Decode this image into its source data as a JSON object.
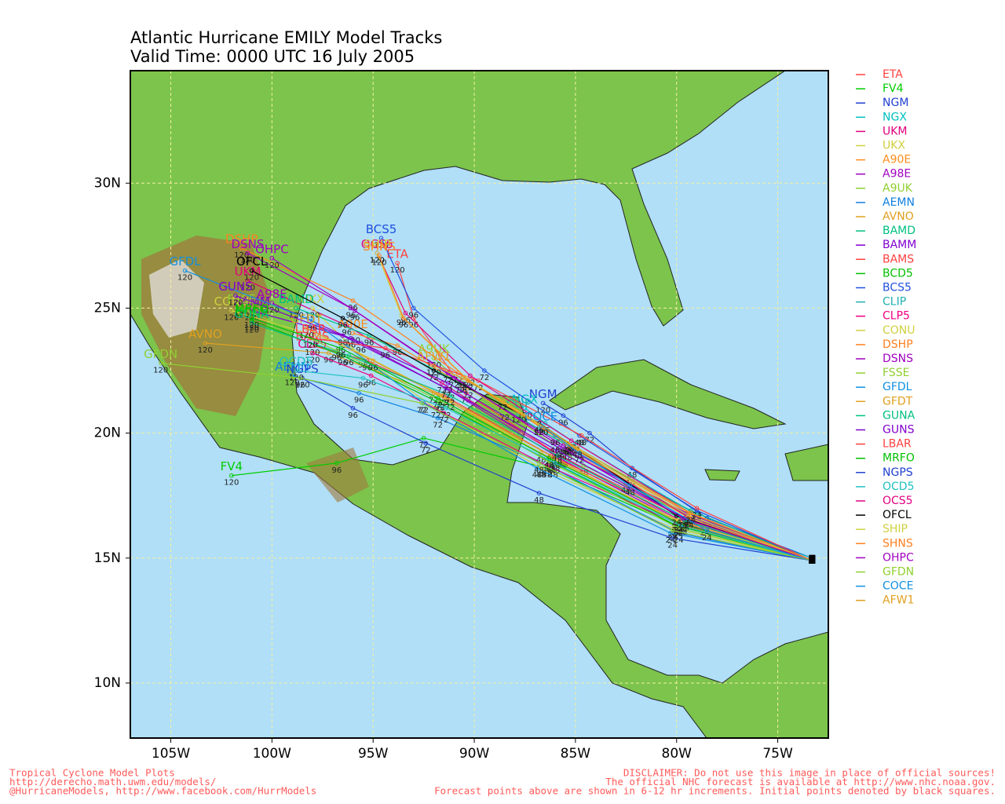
{
  "header": {
    "title": "Atlantic Hurricane EMILY Model Tracks",
    "subtitle": "Valid Time: 0000 UTC 16 July 2005"
  },
  "map": {
    "xlim": [
      -107,
      -72.5
    ],
    "ylim": [
      7.8,
      34.5
    ],
    "xticks": [
      {
        "value": -105,
        "label": "105W"
      },
      {
        "value": -100,
        "label": "100W"
      },
      {
        "value": -95,
        "label": "95W"
      },
      {
        "value": -90,
        "label": "90W"
      },
      {
        "value": -85,
        "label": "85W"
      },
      {
        "value": -80,
        "label": "80W"
      },
      {
        "value": -75,
        "label": "75W"
      }
    ],
    "yticks": [
      {
        "value": 10,
        "label": "10N"
      },
      {
        "value": 15,
        "label": "15N"
      },
      {
        "value": 20,
        "label": "20N"
      },
      {
        "value": 25,
        "label": "25N"
      },
      {
        "value": 30,
        "label": "30N"
      }
    ],
    "grid": true,
    "hour_labels": [
      24,
      48,
      72,
      96,
      120
    ]
  },
  "models": [
    {
      "name": "ETA",
      "color": "#ff4040",
      "points": [
        [
          -73.3,
          14.9
        ],
        [
          -79.6,
          16.6
        ],
        [
          -85.6,
          19.0
        ],
        [
          -90.4,
          21.6
        ],
        [
          -93.0,
          24.6
        ],
        [
          -93.8,
          26.8
        ]
      ]
    },
    {
      "name": "FV4",
      "color": "#00cc00",
      "points": [
        [
          -73.3,
          14.9
        ],
        [
          -80.0,
          16.3
        ],
        [
          -86.4,
          18.6
        ],
        [
          -92.5,
          19.8
        ],
        [
          -96.8,
          18.8
        ],
        [
          -102.0,
          18.3
        ]
      ]
    },
    {
      "name": "NGM",
      "color": "#2040d0",
      "points": [
        [
          -73.3,
          15.0
        ],
        [
          -78.5,
          16.6
        ],
        [
          -82.2,
          18.6
        ],
        [
          -84.3,
          20.0
        ],
        [
          -85.6,
          20.7
        ],
        [
          -86.6,
          21.2
        ]
      ]
    },
    {
      "name": "NGX",
      "color": "#00c0c0",
      "points": [
        [
          -73.3,
          15.0
        ],
        [
          -78.3,
          16.4
        ],
        [
          -82.3,
          18.3
        ],
        [
          -85.0,
          19.6
        ],
        [
          -86.5,
          20.4
        ],
        [
          -87.5,
          21.0
        ]
      ]
    },
    {
      "name": "UKM",
      "color": "#e0007f",
      "points": [
        [
          -73.3,
          14.9
        ],
        [
          -79.8,
          16.5
        ],
        [
          -86.2,
          19.3
        ],
        [
          -91.6,
          22.0
        ],
        [
          -96.3,
          24.3
        ],
        [
          -101.2,
          26.1
        ]
      ]
    },
    {
      "name": "UKX",
      "color": "#d0d040",
      "points": [
        [
          -73.3,
          14.9
        ],
        [
          -80.2,
          16.2
        ],
        [
          -86.7,
          18.6
        ],
        [
          -91.9,
          21.0
        ],
        [
          -95.5,
          23.0
        ],
        [
          -98.0,
          25.0
        ]
      ]
    },
    {
      "name": "A90E",
      "color": "#ff8c1a",
      "points": [
        [
          -73.3,
          14.9
        ],
        [
          -79.4,
          16.7
        ],
        [
          -85.4,
          19.3
        ],
        [
          -90.3,
          21.8
        ],
        [
          -93.8,
          23.5
        ],
        [
          -96.0,
          24.0
        ]
      ]
    },
    {
      "name": "A98E",
      "color": "#a000c0",
      "points": [
        [
          -73.3,
          14.9
        ],
        [
          -79.7,
          16.4
        ],
        [
          -85.8,
          19.0
        ],
        [
          -91.2,
          21.7
        ],
        [
          -95.6,
          23.6
        ],
        [
          -100.0,
          25.2
        ]
      ]
    },
    {
      "name": "A9UK",
      "color": "#90d030",
      "points": [
        [
          -73.3,
          14.9
        ],
        [
          -79.2,
          16.6
        ],
        [
          -84.6,
          18.7
        ],
        [
          -88.5,
          20.9
        ],
        [
          -90.6,
          22.0
        ],
        [
          -92.0,
          23.0
        ]
      ]
    },
    {
      "name": "AEMN",
      "color": "#1080e0",
      "points": [
        [
          -73.3,
          14.9
        ],
        [
          -79.9,
          16.0
        ],
        [
          -86.1,
          18.6
        ],
        [
          -91.8,
          20.6
        ],
        [
          -95.7,
          21.6
        ],
        [
          -99.0,
          22.3
        ]
      ]
    },
    {
      "name": "AVNO",
      "color": "#e0a020",
      "points": [
        [
          -73.3,
          14.9
        ],
        [
          -80.0,
          16.5
        ],
        [
          -86.7,
          19.2
        ],
        [
          -92.0,
          21.6
        ],
        [
          -97.2,
          23.2
        ],
        [
          -103.3,
          23.6
        ]
      ]
    },
    {
      "name": "BAMD",
      "color": "#00c080",
      "points": [
        [
          -73.3,
          14.9
        ],
        [
          -79.3,
          16.9
        ],
        [
          -85.4,
          19.5
        ],
        [
          -90.7,
          22.0
        ],
        [
          -95.2,
          23.9
        ],
        [
          -98.8,
          25.0
        ]
      ]
    },
    {
      "name": "BAMM",
      "color": "#8000d0",
      "points": [
        [
          -73.3,
          14.9
        ],
        [
          -79.5,
          16.8
        ],
        [
          -85.8,
          19.4
        ],
        [
          -91.3,
          22.0
        ],
        [
          -96.1,
          23.8
        ],
        [
          -101.0,
          24.9
        ]
      ]
    },
    {
      "name": "BAMS",
      "color": "#ff4040",
      "points": [
        [
          -73.3,
          14.9
        ],
        [
          -79.8,
          16.6
        ],
        [
          -86.2,
          19.1
        ],
        [
          -91.5,
          21.5
        ],
        [
          -95.3,
          22.9
        ],
        [
          -98.0,
          23.5
        ]
      ]
    },
    {
      "name": "BCD5",
      "color": "#00c000",
      "points": [
        [
          -73.3,
          14.9
        ],
        [
          -80.0,
          16.3
        ],
        [
          -86.3,
          18.9
        ],
        [
          -91.7,
          21.2
        ],
        [
          -96.5,
          23.1
        ],
        [
          -101.0,
          24.5
        ]
      ]
    },
    {
      "name": "BCS5",
      "color": "#2050e0",
      "points": [
        [
          -73.3,
          14.9
        ],
        [
          -79.0,
          16.9
        ],
        [
          -84.8,
          19.9
        ],
        [
          -89.5,
          22.5
        ],
        [
          -93.0,
          25.0
        ],
        [
          -94.6,
          27.8
        ]
      ]
    },
    {
      "name": "CLIP",
      "color": "#20b0b0",
      "points": [
        [
          -73.3,
          14.9
        ],
        [
          -78.6,
          16.3
        ],
        [
          -82.5,
          18.0
        ],
        [
          -85.2,
          19.5
        ],
        [
          -86.8,
          20.3
        ],
        [
          -87.8,
          20.8
        ]
      ]
    },
    {
      "name": "CLP5",
      "color": "#f00080",
      "points": [
        [
          -73.3,
          14.9
        ],
        [
          -80.0,
          16.4
        ],
        [
          -86.4,
          18.7
        ],
        [
          -91.5,
          20.8
        ],
        [
          -95.1,
          22.3
        ],
        [
          -98.0,
          23.2
        ]
      ]
    },
    {
      "name": "CONU",
      "color": "#d0d040",
      "points": [
        [
          -73.3,
          14.9
        ],
        [
          -79.9,
          16.5
        ],
        [
          -86.3,
          19.0
        ],
        [
          -91.6,
          21.5
        ],
        [
          -96.6,
          23.6
        ],
        [
          -102.0,
          24.9
        ]
      ]
    },
    {
      "name": "DSHP",
      "color": "#ff8020",
      "points": [
        [
          -73.3,
          14.9
        ],
        [
          -79.4,
          16.8
        ],
        [
          -85.5,
          19.6
        ],
        [
          -90.8,
          22.4
        ],
        [
          -96.0,
          25.3
        ],
        [
          -101.5,
          27.4
        ]
      ]
    },
    {
      "name": "DSNS",
      "color": "#a000c0",
      "points": [
        [
          -73.3,
          14.9
        ],
        [
          -79.5,
          16.7
        ],
        [
          -85.6,
          19.5
        ],
        [
          -91.0,
          22.2
        ],
        [
          -96.1,
          25.0
        ],
        [
          -101.2,
          27.2
        ]
      ]
    },
    {
      "name": "FSSE",
      "color": "#90d030",
      "points": [
        [
          -73.3,
          14.9
        ],
        [
          -79.9,
          16.2
        ],
        [
          -86.2,
          18.8
        ],
        [
          -91.7,
          21.3
        ],
        [
          -96.8,
          23.3
        ],
        [
          -101.5,
          25.0
        ]
      ]
    },
    {
      "name": "GFDL",
      "color": "#1090e0",
      "points": [
        [
          -73.3,
          14.9
        ],
        [
          -80.3,
          16.0
        ],
        [
          -86.9,
          18.6
        ],
        [
          -92.5,
          21.2
        ],
        [
          -98.0,
          24.5
        ],
        [
          -104.3,
          26.5
        ]
      ]
    },
    {
      "name": "GFDT",
      "color": "#e0a020",
      "points": [
        [
          -73.3,
          14.9
        ],
        [
          -79.7,
          16.3
        ],
        [
          -86.0,
          19.0
        ],
        [
          -91.2,
          21.3
        ],
        [
          -95.0,
          22.9
        ],
        [
          -98.3,
          24.2
        ]
      ]
    },
    {
      "name": "GUNA",
      "color": "#00c080",
      "points": [
        [
          -73.3,
          14.9
        ],
        [
          -79.6,
          16.5
        ],
        [
          -85.9,
          19.1
        ],
        [
          -91.2,
          21.5
        ],
        [
          -96.2,
          23.1
        ],
        [
          -101.0,
          24.4
        ]
      ]
    },
    {
      "name": "GUNS",
      "color": "#8000d0",
      "points": [
        [
          -73.3,
          14.9
        ],
        [
          -79.6,
          16.6
        ],
        [
          -85.9,
          19.3
        ],
        [
          -91.4,
          21.8
        ],
        [
          -96.5,
          23.9
        ],
        [
          -101.8,
          25.5
        ]
      ]
    },
    {
      "name": "LBAR",
      "color": "#ff4040",
      "points": [
        [
          -73.3,
          14.9
        ],
        [
          -79.0,
          17.0
        ],
        [
          -84.7,
          19.9
        ],
        [
          -89.8,
          22.1
        ],
        [
          -94.4,
          23.4
        ],
        [
          -98.1,
          23.8
        ]
      ]
    },
    {
      "name": "MRFO",
      "color": "#00c000",
      "points": [
        [
          -73.3,
          14.9
        ],
        [
          -79.9,
          16.4
        ],
        [
          -86.3,
          19.0
        ],
        [
          -91.8,
          21.4
        ],
        [
          -96.6,
          23.4
        ],
        [
          -101.0,
          24.6
        ]
      ]
    },
    {
      "name": "NGPS",
      "color": "#2040d0",
      "points": [
        [
          -73.3,
          14.9
        ],
        [
          -80.2,
          15.8
        ],
        [
          -86.8,
          17.6
        ],
        [
          -92.4,
          19.6
        ],
        [
          -96.0,
          21.0
        ],
        [
          -98.5,
          22.2
        ]
      ]
    },
    {
      "name": "OCD5",
      "color": "#20c0c0",
      "points": [
        [
          -73.3,
          14.9
        ],
        [
          -79.8,
          16.3
        ],
        [
          -86.0,
          18.8
        ],
        [
          -91.4,
          21.0
        ],
        [
          -95.5,
          22.2
        ],
        [
          -98.8,
          22.5
        ]
      ]
    },
    {
      "name": "OCS5",
      "color": "#e0007f",
      "points": [
        [
          -73.3,
          14.9
        ],
        [
          -79.3,
          16.8
        ],
        [
          -85.2,
          19.7
        ],
        [
          -90.2,
          22.3
        ],
        [
          -93.4,
          24.8
        ],
        [
          -94.8,
          27.2
        ]
      ]
    },
    {
      "name": "OFCL",
      "color": "#000000",
      "points": [
        [
          -73.3,
          14.9
        ],
        [
          -80.0,
          16.7
        ],
        [
          -86.8,
          20.4
        ],
        [
          -92.0,
          22.5
        ],
        [
          -96.5,
          24.6
        ],
        [
          -101.0,
          26.5
        ]
      ]
    },
    {
      "name": "SHIP",
      "color": "#d0d040",
      "points": [
        [
          -73.3,
          14.9
        ],
        [
          -79.4,
          16.7
        ],
        [
          -85.4,
          19.6
        ],
        [
          -90.4,
          22.2
        ],
        [
          -93.6,
          24.7
        ],
        [
          -94.8,
          27.2
        ]
      ]
    },
    {
      "name": "SHNS",
      "color": "#ff8020",
      "points": [
        [
          -73.3,
          14.9
        ],
        [
          -79.4,
          16.6
        ],
        [
          -85.3,
          19.5
        ],
        [
          -90.3,
          22.1
        ],
        [
          -93.5,
          24.6
        ],
        [
          -94.7,
          27.1
        ]
      ]
    },
    {
      "name": "OHPC",
      "color": "#a000c0",
      "points": [
        [
          -73.3,
          14.9
        ],
        [
          -79.7,
          16.6
        ],
        [
          -86.0,
          19.6
        ],
        [
          -91.3,
          22.4
        ],
        [
          -95.9,
          24.9
        ],
        [
          -100.0,
          27.0
        ]
      ]
    },
    {
      "name": "GFDN",
      "color": "#90d030",
      "points": [
        [
          -73.3,
          14.9
        ],
        [
          -80.2,
          16.1
        ],
        [
          -86.8,
          18.8
        ],
        [
          -92.6,
          21.2
        ],
        [
          -98.6,
          22.2
        ],
        [
          -105.5,
          22.8
        ]
      ]
    },
    {
      "name": "COCE",
      "color": "#1090e0",
      "points": [
        [
          -73.3,
          14.9
        ],
        [
          -78.5,
          16.1
        ],
        [
          -82.3,
          17.9
        ],
        [
          -84.8,
          19.2
        ],
        [
          -86.0,
          19.9
        ],
        [
          -86.7,
          20.3
        ]
      ]
    },
    {
      "name": "AFW1",
      "color": "#e0a020",
      "points": [
        [
          -73.3,
          14.9
        ],
        [
          -79.3,
          16.8
        ],
        [
          -84.9,
          19.4
        ],
        [
          -88.6,
          21.3
        ],
        [
          -90.6,
          22.2
        ],
        [
          -92.0,
          22.7
        ]
      ]
    }
  ],
  "footer": {
    "left": [
      "Tropical Cyclone Model Plots",
      "http://derecho.math.uwm.edu/models/",
      "@HurricaneModels, http://www.facebook.com/HurrModels"
    ],
    "right": [
      "DISCLAIMER: Do not use this image in place of official sources!",
      "The official NHC forecast is available at http://www.nhc.noaa.gov.",
      "Forecast points above are shown in 6-12 hr increments. Initial points denoted by black squares."
    ]
  }
}
